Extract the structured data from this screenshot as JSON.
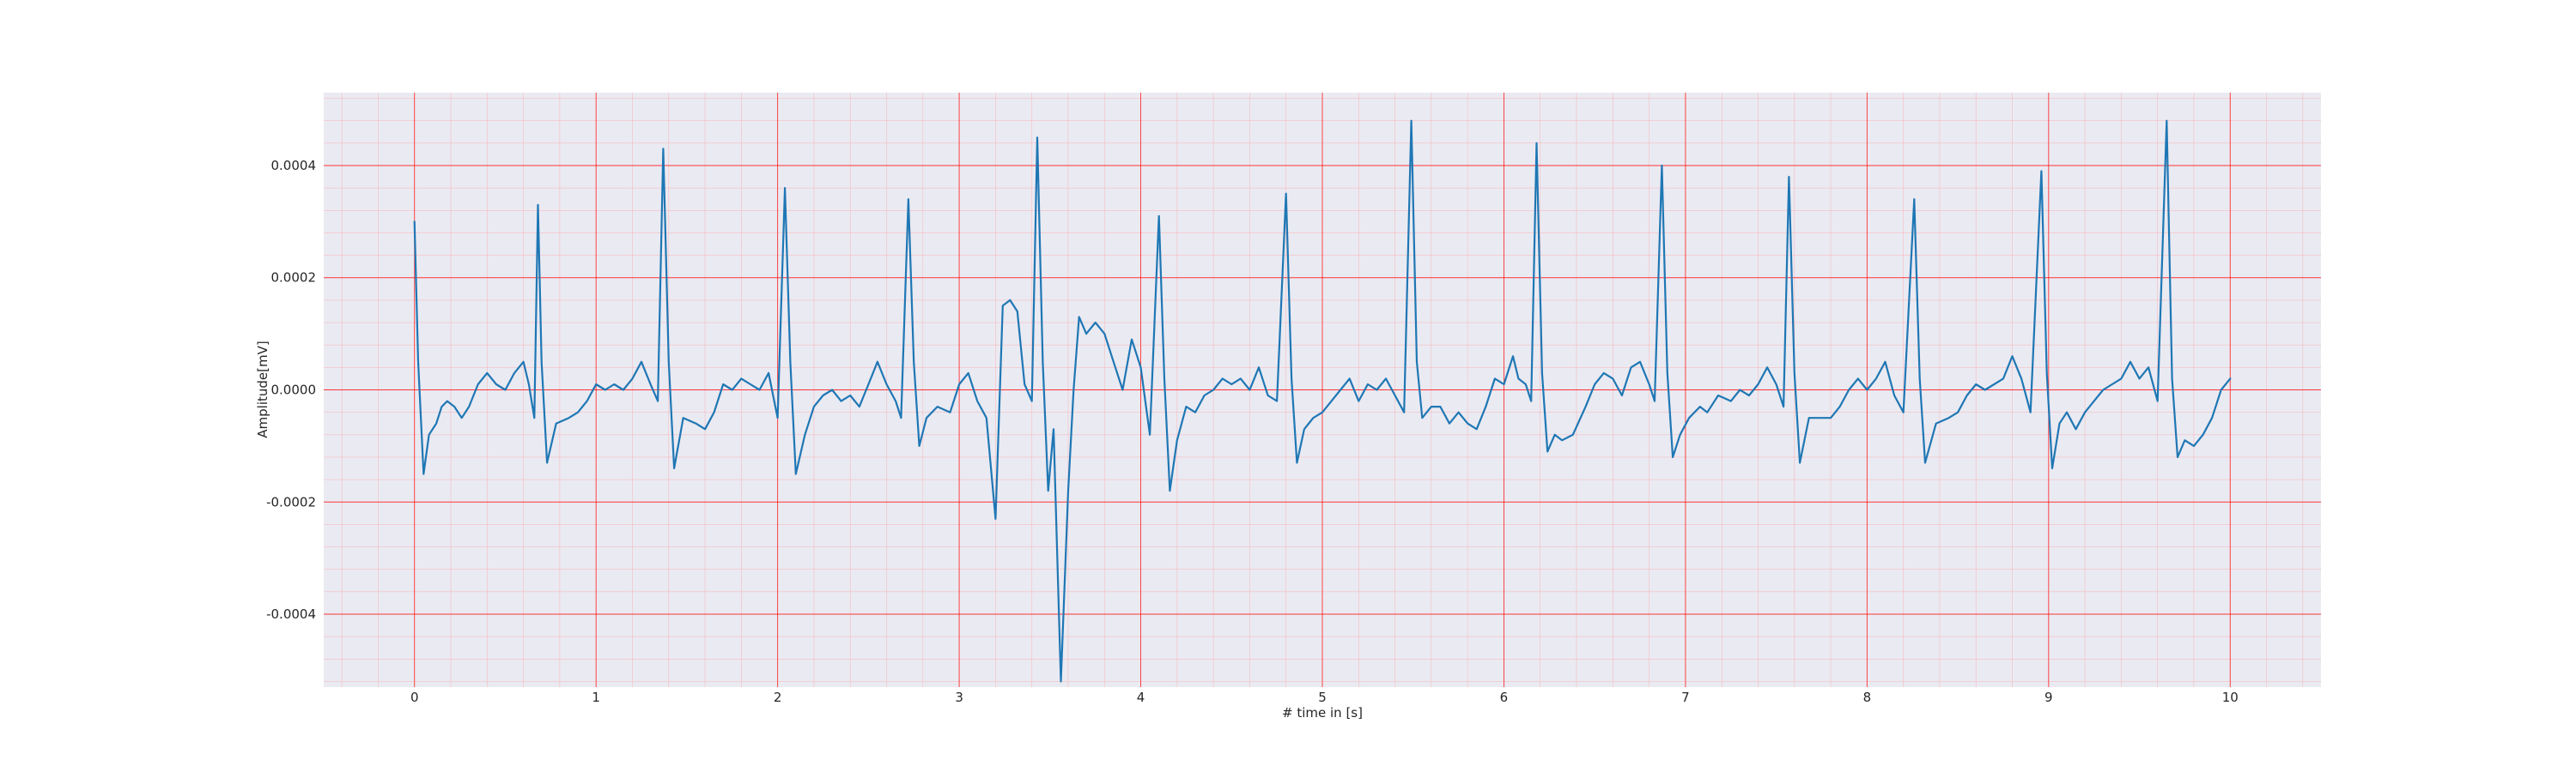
{
  "chart_data": {
    "type": "line",
    "title": "",
    "xlabel": "# time in [s]",
    "ylabel": "Amplitude[mV]",
    "xlim": [
      -0.5,
      10.5
    ],
    "ylim": [
      -0.00053,
      0.00053
    ],
    "xticks": [
      0,
      1,
      2,
      3,
      4,
      5,
      6,
      7,
      8,
      9,
      10
    ],
    "xtick_labels": [
      "0",
      "1",
      "2",
      "3",
      "4",
      "5",
      "6",
      "7",
      "8",
      "9",
      "10"
    ],
    "yticks": [
      -0.0004,
      -0.0002,
      0.0,
      0.0002,
      0.0004
    ],
    "ytick_labels": [
      "-0.0004",
      "-0.0002",
      "0.0000",
      "0.0002",
      "0.0004"
    ],
    "grid": true,
    "minor_grid": true,
    "colors": {
      "background": "#EAEAF2",
      "major_grid": "#FF0000",
      "minor_grid": "#FF9999",
      "line": "#1F77B4"
    },
    "series": [
      {
        "values": [
          [
            0.0,
            0.0003
          ],
          [
            0.02,
            5e-05
          ],
          [
            0.05,
            -0.00015
          ],
          [
            0.08,
            -8e-05
          ],
          [
            0.12,
            -6e-05
          ],
          [
            0.15,
            -3e-05
          ],
          [
            0.18,
            -2e-05
          ],
          [
            0.22,
            -3e-05
          ],
          [
            0.26,
            -5e-05
          ],
          [
            0.3,
            -3e-05
          ],
          [
            0.35,
            1e-05
          ],
          [
            0.4,
            3e-05
          ],
          [
            0.45,
            1e-05
          ],
          [
            0.5,
            0.0
          ],
          [
            0.55,
            3e-05
          ],
          [
            0.6,
            5e-05
          ],
          [
            0.63,
            1e-05
          ],
          [
            0.66,
            -5e-05
          ],
          [
            0.68,
            0.00033
          ],
          [
            0.7,
            5e-05
          ],
          [
            0.73,
            -0.00013
          ],
          [
            0.78,
            -6e-05
          ],
          [
            0.85,
            -5e-05
          ],
          [
            0.9,
            -4e-05
          ],
          [
            0.95,
            -2e-05
          ],
          [
            1.0,
            1e-05
          ],
          [
            1.05,
            0.0
          ],
          [
            1.1,
            1e-05
          ],
          [
            1.15,
            0.0
          ],
          [
            1.2,
            2e-05
          ],
          [
            1.25,
            5e-05
          ],
          [
            1.3,
            1e-05
          ],
          [
            1.34,
            -2e-05
          ],
          [
            1.37,
            0.00043
          ],
          [
            1.4,
            5e-05
          ],
          [
            1.43,
            -0.00014
          ],
          [
            1.48,
            -5e-05
          ],
          [
            1.55,
            -6e-05
          ],
          [
            1.6,
            -7e-05
          ],
          [
            1.65,
            -4e-05
          ],
          [
            1.7,
            1e-05
          ],
          [
            1.75,
            0.0
          ],
          [
            1.8,
            2e-05
          ],
          [
            1.85,
            1e-05
          ],
          [
            1.9,
            0.0
          ],
          [
            1.95,
            3e-05
          ],
          [
            2.0,
            -5e-05
          ],
          [
            2.04,
            0.00036
          ],
          [
            2.07,
            5e-05
          ],
          [
            2.1,
            -0.00015
          ],
          [
            2.15,
            -8e-05
          ],
          [
            2.2,
            -3e-05
          ],
          [
            2.25,
            -1e-05
          ],
          [
            2.3,
            0.0
          ],
          [
            2.35,
            -2e-05
          ],
          [
            2.4,
            -1e-05
          ],
          [
            2.45,
            -3e-05
          ],
          [
            2.5,
            1e-05
          ],
          [
            2.55,
            5e-05
          ],
          [
            2.6,
            1e-05
          ],
          [
            2.65,
            -2e-05
          ],
          [
            2.68,
            -5e-05
          ],
          [
            2.72,
            0.00034
          ],
          [
            2.75,
            5e-05
          ],
          [
            2.78,
            -0.0001
          ],
          [
            2.82,
            -5e-05
          ],
          [
            2.88,
            -3e-05
          ],
          [
            2.95,
            -4e-05
          ],
          [
            3.0,
            1e-05
          ],
          [
            3.05,
            3e-05
          ],
          [
            3.1,
            -2e-05
          ],
          [
            3.15,
            -5e-05
          ],
          [
            3.2,
            -0.00023
          ],
          [
            3.24,
            0.00015
          ],
          [
            3.28,
            0.00016
          ],
          [
            3.32,
            0.00014
          ],
          [
            3.36,
            1e-05
          ],
          [
            3.4,
            -2e-05
          ],
          [
            3.43,
            0.00045
          ],
          [
            3.46,
            5e-05
          ],
          [
            3.49,
            -0.00018
          ],
          [
            3.52,
            -7e-05
          ],
          [
            3.56,
            -0.00052
          ],
          [
            3.6,
            -0.00018
          ],
          [
            3.63,
            0.0
          ],
          [
            3.66,
            0.00013
          ],
          [
            3.7,
            0.0001
          ],
          [
            3.75,
            0.00012
          ],
          [
            3.8,
            0.0001
          ],
          [
            3.85,
            5e-05
          ],
          [
            3.9,
            0.0
          ],
          [
            3.95,
            9e-05
          ],
          [
            4.0,
            4e-05
          ],
          [
            4.05,
            -8e-05
          ],
          [
            4.1,
            0.00031
          ],
          [
            4.13,
            2e-05
          ],
          [
            4.16,
            -0.00018
          ],
          [
            4.2,
            -9e-05
          ],
          [
            4.25,
            -3e-05
          ],
          [
            4.3,
            -4e-05
          ],
          [
            4.35,
            -1e-05
          ],
          [
            4.4,
            0.0
          ],
          [
            4.45,
            2e-05
          ],
          [
            4.5,
            1e-05
          ],
          [
            4.55,
            2e-05
          ],
          [
            4.6,
            0.0
          ],
          [
            4.65,
            4e-05
          ],
          [
            4.7,
            -1e-05
          ],
          [
            4.75,
            -2e-05
          ],
          [
            4.8,
            0.00035
          ],
          [
            4.83,
            2e-05
          ],
          [
            4.86,
            -0.00013
          ],
          [
            4.9,
            -7e-05
          ],
          [
            4.95,
            -5e-05
          ],
          [
            5.0,
            -4e-05
          ],
          [
            5.05,
            -2e-05
          ],
          [
            5.1,
            0.0
          ],
          [
            5.15,
            2e-05
          ],
          [
            5.2,
            -2e-05
          ],
          [
            5.25,
            1e-05
          ],
          [
            5.3,
            0.0
          ],
          [
            5.35,
            2e-05
          ],
          [
            5.4,
            -1e-05
          ],
          [
            5.45,
            -4e-05
          ],
          [
            5.49,
            0.00048
          ],
          [
            5.52,
            5e-05
          ],
          [
            5.55,
            -5e-05
          ],
          [
            5.6,
            -3e-05
          ],
          [
            5.65,
            -3e-05
          ],
          [
            5.7,
            -6e-05
          ],
          [
            5.75,
            -4e-05
          ],
          [
            5.8,
            -6e-05
          ],
          [
            5.85,
            -7e-05
          ],
          [
            5.9,
            -3e-05
          ],
          [
            5.95,
            2e-05
          ],
          [
            6.0,
            1e-05
          ],
          [
            6.05,
            6e-05
          ],
          [
            6.08,
            2e-05
          ],
          [
            6.12,
            1e-05
          ],
          [
            6.15,
            -2e-05
          ],
          [
            6.18,
            0.00044
          ],
          [
            6.21,
            3e-05
          ],
          [
            6.24,
            -0.00011
          ],
          [
            6.28,
            -8e-05
          ],
          [
            6.32,
            -9e-05
          ],
          [
            6.38,
            -8e-05
          ],
          [
            6.45,
            -3e-05
          ],
          [
            6.5,
            1e-05
          ],
          [
            6.55,
            3e-05
          ],
          [
            6.6,
            2e-05
          ],
          [
            6.65,
            -1e-05
          ],
          [
            6.7,
            4e-05
          ],
          [
            6.75,
            5e-05
          ],
          [
            6.8,
            1e-05
          ],
          [
            6.83,
            -2e-05
          ],
          [
            6.87,
            0.0004
          ],
          [
            6.9,
            3e-05
          ],
          [
            6.93,
            -0.00012
          ],
          [
            6.97,
            -8e-05
          ],
          [
            7.02,
            -5e-05
          ],
          [
            7.08,
            -3e-05
          ],
          [
            7.12,
            -4e-05
          ],
          [
            7.18,
            -1e-05
          ],
          [
            7.25,
            -2e-05
          ],
          [
            7.3,
            0.0
          ],
          [
            7.35,
            -1e-05
          ],
          [
            7.4,
            1e-05
          ],
          [
            7.45,
            4e-05
          ],
          [
            7.5,
            1e-05
          ],
          [
            7.54,
            -3e-05
          ],
          [
            7.57,
            0.00038
          ],
          [
            7.6,
            3e-05
          ],
          [
            7.63,
            -0.00013
          ],
          [
            7.68,
            -5e-05
          ],
          [
            7.75,
            -5e-05
          ],
          [
            7.8,
            -5e-05
          ],
          [
            7.85,
            -3e-05
          ],
          [
            7.9,
            0.0
          ],
          [
            7.95,
            2e-05
          ],
          [
            8.0,
            0.0
          ],
          [
            8.05,
            2e-05
          ],
          [
            8.1,
            5e-05
          ],
          [
            8.15,
            -1e-05
          ],
          [
            8.2,
            -4e-05
          ],
          [
            8.26,
            0.00034
          ],
          [
            8.29,
            2e-05
          ],
          [
            8.32,
            -0.00013
          ],
          [
            8.38,
            -6e-05
          ],
          [
            8.45,
            -5e-05
          ],
          [
            8.5,
            -4e-05
          ],
          [
            8.55,
            -1e-05
          ],
          [
            8.6,
            1e-05
          ],
          [
            8.65,
            0.0
          ],
          [
            8.7,
            1e-05
          ],
          [
            8.75,
            2e-05
          ],
          [
            8.8,
            6e-05
          ],
          [
            8.85,
            2e-05
          ],
          [
            8.9,
            -4e-05
          ],
          [
            8.96,
            0.00039
          ],
          [
            8.99,
            3e-05
          ],
          [
            9.02,
            -0.00014
          ],
          [
            9.06,
            -6e-05
          ],
          [
            9.1,
            -4e-05
          ],
          [
            9.15,
            -7e-05
          ],
          [
            9.2,
            -4e-05
          ],
          [
            9.25,
            -2e-05
          ],
          [
            9.3,
            0.0
          ],
          [
            9.35,
            1e-05
          ],
          [
            9.4,
            2e-05
          ],
          [
            9.45,
            5e-05
          ],
          [
            9.5,
            2e-05
          ],
          [
            9.55,
            4e-05
          ],
          [
            9.6,
            -2e-05
          ],
          [
            9.65,
            0.00048
          ],
          [
            9.68,
            2e-05
          ],
          [
            9.71,
            -0.00012
          ],
          [
            9.75,
            -9e-05
          ],
          [
            9.8,
            -0.0001
          ],
          [
            9.85,
            -8e-05
          ],
          [
            9.9,
            -5e-05
          ],
          [
            9.95,
            0.0
          ],
          [
            10.0,
            2e-05
          ]
        ]
      }
    ]
  }
}
